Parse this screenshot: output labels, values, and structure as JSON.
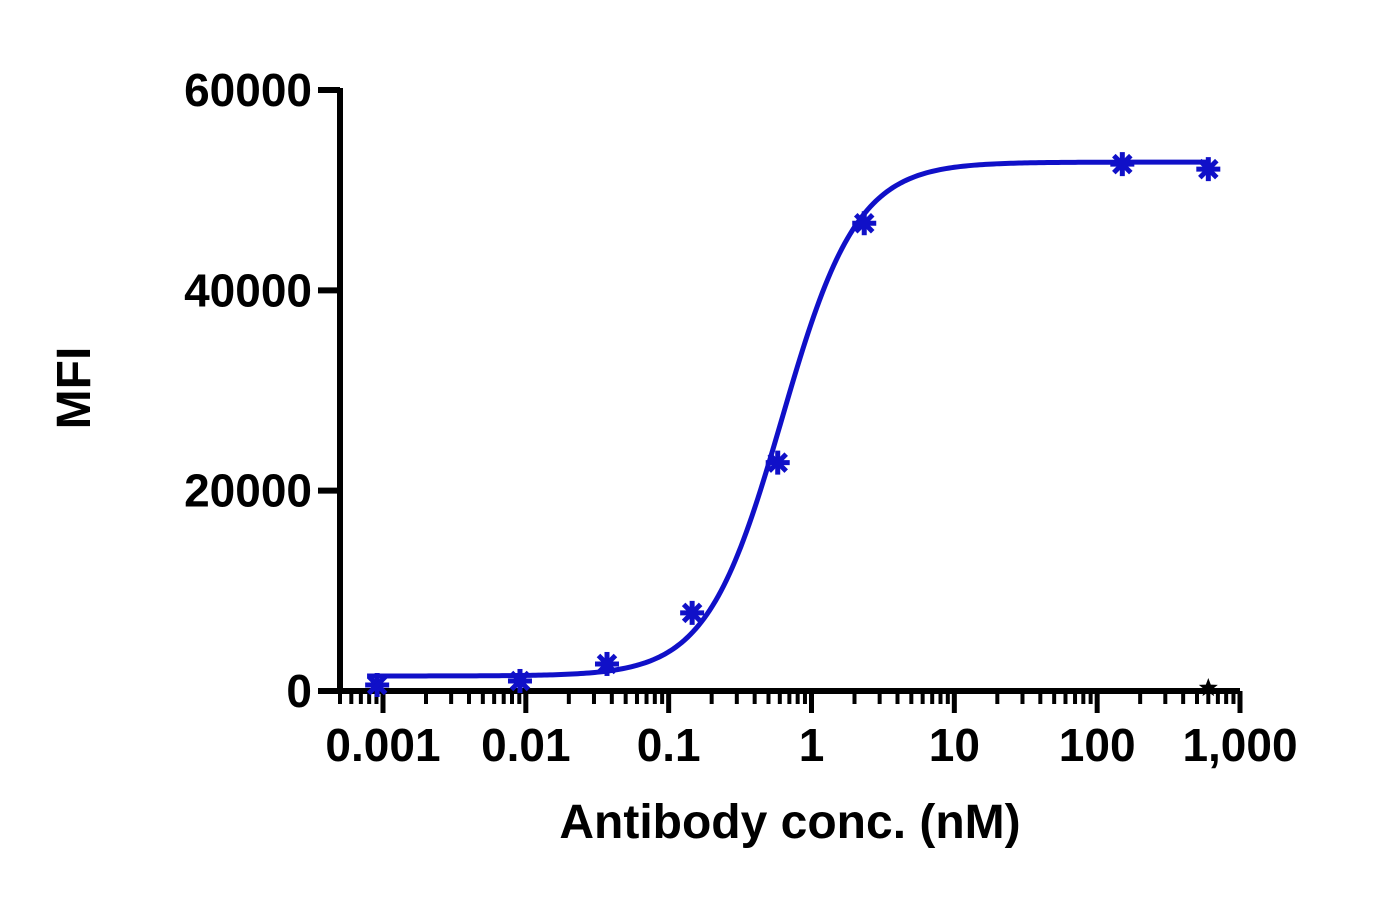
{
  "chart_data": {
    "type": "scatter",
    "title": "",
    "xlabel": "Antibody conc. (nM)",
    "ylabel": "MFI",
    "x_scale": "log",
    "xlim": [
      0.0005,
      1000
    ],
    "ylim": [
      0,
      60000
    ],
    "x_ticks": [
      {
        "value": 0.001,
        "label": "0.001"
      },
      {
        "value": 0.01,
        "label": "0.01"
      },
      {
        "value": 0.1,
        "label": "0.1"
      },
      {
        "value": 1,
        "label": "1"
      },
      {
        "value": 10,
        "label": "10"
      },
      {
        "value": 100,
        "label": "100"
      },
      {
        "value": 1000,
        "label": "1,000"
      }
    ],
    "y_ticks": [
      {
        "value": 0,
        "label": "0"
      },
      {
        "value": 20000,
        "label": "20000"
      },
      {
        "value": 40000,
        "label": "40000"
      },
      {
        "value": 60000,
        "label": "60000"
      }
    ],
    "grid": false,
    "legend": "none",
    "series": [
      {
        "color": "#1010c8",
        "marker": "asterisk",
        "points": [
          {
            "x": 0.00091,
            "y": 600
          },
          {
            "x": 0.0091,
            "y": 1000
          },
          {
            "x": 0.037,
            "y": 2700
          },
          {
            "x": 0.146,
            "y": 7800
          },
          {
            "x": 0.58,
            "y": 22800
          },
          {
            "x": 2.34,
            "y": 46700
          },
          {
            "x": 150,
            "y": 52600
          },
          {
            "x": 600,
            "y": 52100
          }
        ],
        "fit": {
          "model": "4PL",
          "bottom": 1500,
          "top": 52800,
          "ec50": 0.62,
          "hill": 1.65
        }
      },
      {
        "color": "#000000",
        "marker": "star",
        "points": [
          {
            "x": 600,
            "y": 300
          }
        ]
      }
    ]
  }
}
